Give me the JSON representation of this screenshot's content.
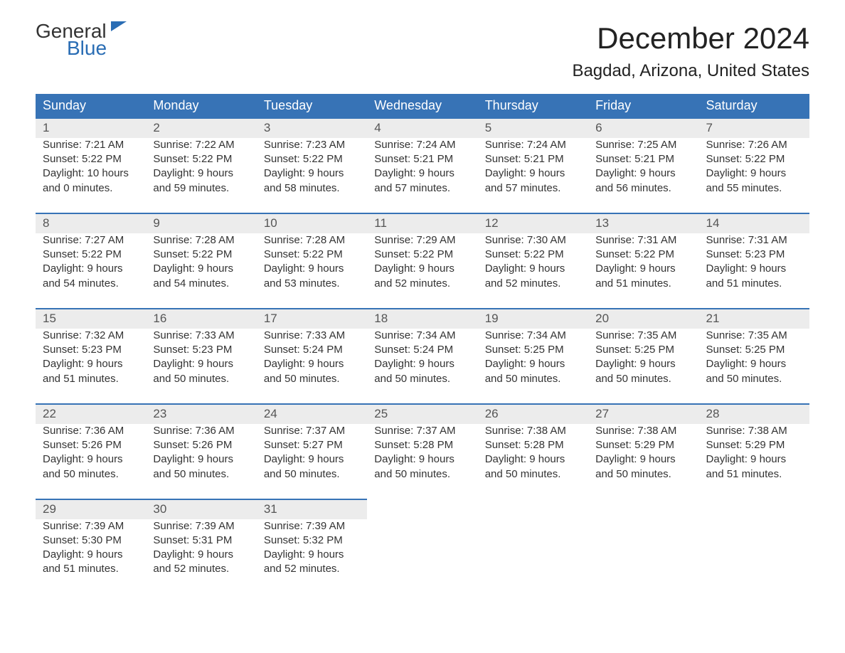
{
  "logo": {
    "text1": "General",
    "text2": "Blue",
    "accent_color": "#2a6db4"
  },
  "title": "December 2024",
  "location": "Bagdad, Arizona, United States",
  "colors": {
    "header_bg": "#3773b6",
    "header_fg": "#ffffff",
    "daynum_bg": "#ececec",
    "daynum_fg": "#555555",
    "row_border": "#3773b6",
    "body_text": "#333333",
    "background": "#ffffff"
  },
  "typography": {
    "title_fontsize": 42,
    "location_fontsize": 24,
    "weekday_fontsize": 18,
    "daynum_fontsize": 17,
    "cell_fontsize": 15,
    "font_family": "Arial"
  },
  "layout": {
    "columns": 7,
    "rows": 5,
    "first_weekday": "Sunday"
  },
  "weekdays": [
    "Sunday",
    "Monday",
    "Tuesday",
    "Wednesday",
    "Thursday",
    "Friday",
    "Saturday"
  ],
  "days": [
    {
      "n": 1,
      "sunrise": "7:21 AM",
      "sunset": "5:22 PM",
      "daylight_h": 10,
      "daylight_m": 0
    },
    {
      "n": 2,
      "sunrise": "7:22 AM",
      "sunset": "5:22 PM",
      "daylight_h": 9,
      "daylight_m": 59
    },
    {
      "n": 3,
      "sunrise": "7:23 AM",
      "sunset": "5:22 PM",
      "daylight_h": 9,
      "daylight_m": 58
    },
    {
      "n": 4,
      "sunrise": "7:24 AM",
      "sunset": "5:21 PM",
      "daylight_h": 9,
      "daylight_m": 57
    },
    {
      "n": 5,
      "sunrise": "7:24 AM",
      "sunset": "5:21 PM",
      "daylight_h": 9,
      "daylight_m": 57
    },
    {
      "n": 6,
      "sunrise": "7:25 AM",
      "sunset": "5:21 PM",
      "daylight_h": 9,
      "daylight_m": 56
    },
    {
      "n": 7,
      "sunrise": "7:26 AM",
      "sunset": "5:22 PM",
      "daylight_h": 9,
      "daylight_m": 55
    },
    {
      "n": 8,
      "sunrise": "7:27 AM",
      "sunset": "5:22 PM",
      "daylight_h": 9,
      "daylight_m": 54
    },
    {
      "n": 9,
      "sunrise": "7:28 AM",
      "sunset": "5:22 PM",
      "daylight_h": 9,
      "daylight_m": 54
    },
    {
      "n": 10,
      "sunrise": "7:28 AM",
      "sunset": "5:22 PM",
      "daylight_h": 9,
      "daylight_m": 53
    },
    {
      "n": 11,
      "sunrise": "7:29 AM",
      "sunset": "5:22 PM",
      "daylight_h": 9,
      "daylight_m": 52
    },
    {
      "n": 12,
      "sunrise": "7:30 AM",
      "sunset": "5:22 PM",
      "daylight_h": 9,
      "daylight_m": 52
    },
    {
      "n": 13,
      "sunrise": "7:31 AM",
      "sunset": "5:22 PM",
      "daylight_h": 9,
      "daylight_m": 51
    },
    {
      "n": 14,
      "sunrise": "7:31 AM",
      "sunset": "5:23 PM",
      "daylight_h": 9,
      "daylight_m": 51
    },
    {
      "n": 15,
      "sunrise": "7:32 AM",
      "sunset": "5:23 PM",
      "daylight_h": 9,
      "daylight_m": 51
    },
    {
      "n": 16,
      "sunrise": "7:33 AM",
      "sunset": "5:23 PM",
      "daylight_h": 9,
      "daylight_m": 50
    },
    {
      "n": 17,
      "sunrise": "7:33 AM",
      "sunset": "5:24 PM",
      "daylight_h": 9,
      "daylight_m": 50
    },
    {
      "n": 18,
      "sunrise": "7:34 AM",
      "sunset": "5:24 PM",
      "daylight_h": 9,
      "daylight_m": 50
    },
    {
      "n": 19,
      "sunrise": "7:34 AM",
      "sunset": "5:25 PM",
      "daylight_h": 9,
      "daylight_m": 50
    },
    {
      "n": 20,
      "sunrise": "7:35 AM",
      "sunset": "5:25 PM",
      "daylight_h": 9,
      "daylight_m": 50
    },
    {
      "n": 21,
      "sunrise": "7:35 AM",
      "sunset": "5:25 PM",
      "daylight_h": 9,
      "daylight_m": 50
    },
    {
      "n": 22,
      "sunrise": "7:36 AM",
      "sunset": "5:26 PM",
      "daylight_h": 9,
      "daylight_m": 50
    },
    {
      "n": 23,
      "sunrise": "7:36 AM",
      "sunset": "5:26 PM",
      "daylight_h": 9,
      "daylight_m": 50
    },
    {
      "n": 24,
      "sunrise": "7:37 AM",
      "sunset": "5:27 PM",
      "daylight_h": 9,
      "daylight_m": 50
    },
    {
      "n": 25,
      "sunrise": "7:37 AM",
      "sunset": "5:28 PM",
      "daylight_h": 9,
      "daylight_m": 50
    },
    {
      "n": 26,
      "sunrise": "7:38 AM",
      "sunset": "5:28 PM",
      "daylight_h": 9,
      "daylight_m": 50
    },
    {
      "n": 27,
      "sunrise": "7:38 AM",
      "sunset": "5:29 PM",
      "daylight_h": 9,
      "daylight_m": 50
    },
    {
      "n": 28,
      "sunrise": "7:38 AM",
      "sunset": "5:29 PM",
      "daylight_h": 9,
      "daylight_m": 51
    },
    {
      "n": 29,
      "sunrise": "7:39 AM",
      "sunset": "5:30 PM",
      "daylight_h": 9,
      "daylight_m": 51
    },
    {
      "n": 30,
      "sunrise": "7:39 AM",
      "sunset": "5:31 PM",
      "daylight_h": 9,
      "daylight_m": 52
    },
    {
      "n": 31,
      "sunrise": "7:39 AM",
      "sunset": "5:32 PM",
      "daylight_h": 9,
      "daylight_m": 52
    }
  ],
  "labels": {
    "sunrise": "Sunrise:",
    "sunset": "Sunset:",
    "daylight1": "Daylight:",
    "daylight_hours": "hours",
    "daylight_and": "and",
    "daylight_minutes": "minutes."
  }
}
